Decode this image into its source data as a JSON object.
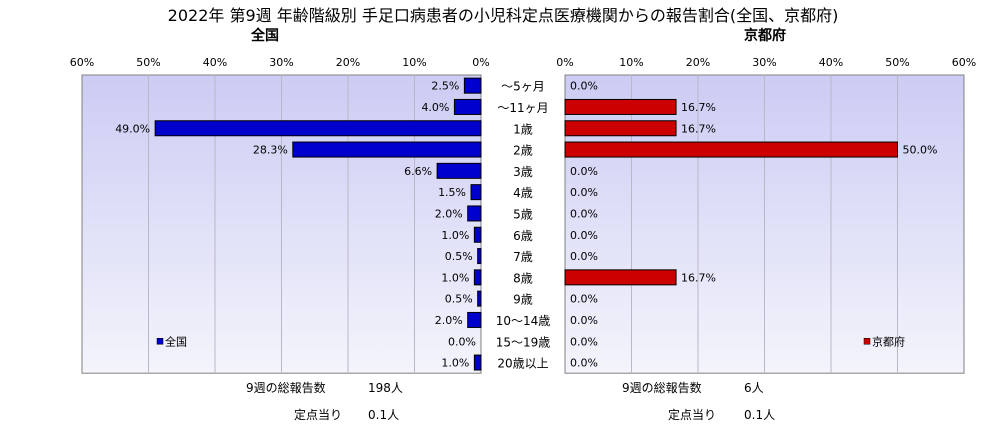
{
  "title": "2022年 第9週  年齢階級別 手足口病患者の小児科定点医療機関からの報告割合(全国、京都府)",
  "colors": {
    "plot_bg_top": "#ccccf4",
    "plot_bg_bottom": "#f4f4fc",
    "national_bar": "#0000cc",
    "kyoto_bar": "#cc0000",
    "grid": "#b8b8c8"
  },
  "chart_data": [
    {
      "type": "bar",
      "orientation": "horizontal-reversed",
      "subtitle": "全国",
      "legend": "全国",
      "legend_position": "bottom-left",
      "xlim": [
        0,
        60
      ],
      "ticks": [
        "60%",
        "50%",
        "40%",
        "30%",
        "20%",
        "10%",
        "0%"
      ],
      "categories": [
        "～5ヶ月",
        "～11ヶ月",
        "1歳",
        "2歳",
        "3歳",
        "4歳",
        "5歳",
        "6歳",
        "7歳",
        "8歳",
        "9歳",
        "10～14歳",
        "15～19歳",
        "20歳以上"
      ],
      "values": [
        2.5,
        4.0,
        49.0,
        28.3,
        6.6,
        1.5,
        2.0,
        1.0,
        0.5,
        1.0,
        0.5,
        2.0,
        0.0,
        1.0
      ],
      "value_labels": [
        "2.5%",
        "4.0%",
        "49.0%",
        "28.3%",
        "6.6%",
        "1.5%",
        "2.0%",
        "1.0%",
        "0.5%",
        "1.0%",
        "0.5%",
        "2.0%",
        "0.0%",
        "1.0%"
      ]
    },
    {
      "type": "bar",
      "orientation": "horizontal",
      "subtitle": "京都府",
      "legend": "京都府",
      "legend_position": "bottom-right",
      "xlim": [
        0,
        60
      ],
      "ticks": [
        "0%",
        "10%",
        "20%",
        "30%",
        "40%",
        "50%",
        "60%"
      ],
      "categories": [
        "～5ヶ月",
        "～11ヶ月",
        "1歳",
        "2歳",
        "3歳",
        "4歳",
        "5歳",
        "6歳",
        "7歳",
        "8歳",
        "9歳",
        "10～14歳",
        "15～19歳",
        "20歳以上"
      ],
      "values": [
        0.0,
        16.7,
        16.7,
        50.0,
        0.0,
        0.0,
        0.0,
        0.0,
        0.0,
        16.7,
        0.0,
        0.0,
        0.0,
        0.0
      ],
      "value_labels": [
        "0.0%",
        "16.7%",
        "16.7%",
        "50.0%",
        "0.0%",
        "0.0%",
        "0.0%",
        "0.0%",
        "0.0%",
        "16.7%",
        "0.0%",
        "0.0%",
        "0.0%",
        "0.0%"
      ]
    }
  ],
  "footer": {
    "national_total_label": "9週の総報告数",
    "national_total_value": "198人",
    "national_per_label": "定点当り",
    "national_per_value": "0.1人",
    "kyoto_total_label": "9週の総報告数",
    "kyoto_total_value": "6人",
    "kyoto_per_label": "定点当り",
    "kyoto_per_value": "0.1人"
  }
}
